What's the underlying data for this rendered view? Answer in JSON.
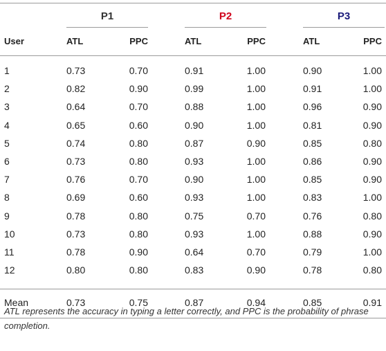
{
  "groups": [
    {
      "label": "P1",
      "color": "#333333"
    },
    {
      "label": "P2",
      "color": "#d0021b"
    },
    {
      "label": "P3",
      "color": "#1a1a7a"
    }
  ],
  "headers": {
    "user": "User",
    "atl": "ATL",
    "ppc": "PPC"
  },
  "rows": [
    [
      "1",
      "0.73",
      "0.70",
      "0.91",
      "1.00",
      "0.90",
      "1.00"
    ],
    [
      "2",
      "0.82",
      "0.90",
      "0.99",
      "1.00",
      "0.91",
      "1.00"
    ],
    [
      "3",
      "0.64",
      "0.70",
      "0.88",
      "1.00",
      "0.96",
      "0.90"
    ],
    [
      "4",
      "0.65",
      "0.60",
      "0.90",
      "1.00",
      "0.81",
      "0.90"
    ],
    [
      "5",
      "0.74",
      "0.80",
      "0.87",
      "0.90",
      "0.85",
      "0.80"
    ],
    [
      "6",
      "0.73",
      "0.80",
      "0.93",
      "1.00",
      "0.86",
      "0.90"
    ],
    [
      "7",
      "0.76",
      "0.70",
      "0.90",
      "1.00",
      "0.85",
      "0.90"
    ],
    [
      "8",
      "0.69",
      "0.60",
      "0.93",
      "1.00",
      "0.83",
      "1.00"
    ],
    [
      "9",
      "0.78",
      "0.80",
      "0.75",
      "0.70",
      "0.76",
      "0.80"
    ],
    [
      "10",
      "0.73",
      "0.80",
      "0.93",
      "1.00",
      "0.88",
      "0.90"
    ],
    [
      "11",
      "0.78",
      "0.90",
      "0.64",
      "0.70",
      "0.79",
      "1.00"
    ],
    [
      "12",
      "0.80",
      "0.80",
      "0.83",
      "0.90",
      "0.78",
      "0.80"
    ]
  ],
  "mean": [
    "Mean",
    "0.73",
    "0.75",
    "0.87",
    "0.94",
    "0.85",
    "0.91"
  ],
  "footnote": "ATL represents the accuracy in typing a letter correctly, and PPC is the probability of phrase completion."
}
